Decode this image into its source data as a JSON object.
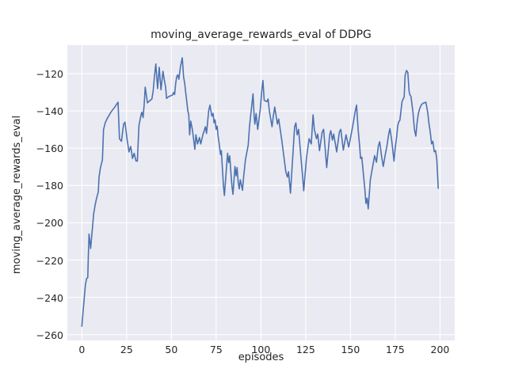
{
  "colors": {
    "figure_bg": "#ffffff",
    "axes_bg": "#eaeaf2",
    "grid": "#ffffff",
    "line": "#4c72b0",
    "text": "#262626"
  },
  "chart_data": {
    "type": "line",
    "title": "moving_average_rewards_eval of DDPG",
    "xlabel": "episodes",
    "ylabel": "moving_average_rewards_eval",
    "legend": null,
    "grid": true,
    "xlim": [
      -8.1,
      208.2
    ],
    "ylim": [
      -263.1,
      -104.7
    ],
    "x_ticks": {
      "values": [
        0,
        25,
        50,
        75,
        100,
        125,
        150,
        175,
        200
      ],
      "labels": [
        "0",
        "25",
        "50",
        "75",
        "100",
        "125",
        "150",
        "175",
        "200"
      ]
    },
    "y_ticks": {
      "values": [
        -260,
        -240,
        -220,
        -200,
        -180,
        -160,
        -140,
        -120
      ],
      "labels": [
        "−260",
        "−240",
        "−220",
        "−200",
        "−180",
        "−160",
        "−140",
        "−120"
      ]
    },
    "series": [
      {
        "name": "moving_average_rewards_eval",
        "points": [
          [
            0,
            -255.5
          ],
          [
            1,
            -244
          ],
          [
            2,
            -233.5
          ],
          [
            2.6,
            -230
          ],
          [
            3.3,
            -229.4
          ],
          [
            3.6,
            -218
          ],
          [
            4,
            -206
          ],
          [
            4.9,
            -213.8
          ],
          [
            5.5,
            -207.4
          ],
          [
            6.1,
            -201
          ],
          [
            6.6,
            -195.3
          ],
          [
            7.5,
            -190
          ],
          [
            8.3,
            -186.5
          ],
          [
            9.2,
            -183.4
          ],
          [
            9.6,
            -175.4
          ],
          [
            10.4,
            -170.5
          ],
          [
            11.5,
            -166.2
          ],
          [
            12.1,
            -150
          ],
          [
            13,
            -146.5
          ],
          [
            14,
            -144.3
          ],
          [
            16.2,
            -140.7
          ],
          [
            18.4,
            -137.9
          ],
          [
            20.2,
            -135.3
          ],
          [
            21,
            -154.9
          ],
          [
            22.1,
            -156.3
          ],
          [
            23.3,
            -147.1
          ],
          [
            24.1,
            -146
          ],
          [
            25.1,
            -154.2
          ],
          [
            26.3,
            -162
          ],
          [
            27.3,
            -159.1
          ],
          [
            28.3,
            -165.5
          ],
          [
            29.2,
            -162.7
          ],
          [
            30.3,
            -166.9
          ],
          [
            31,
            -166.9
          ],
          [
            31.9,
            -147.8
          ],
          [
            32.9,
            -142.8
          ],
          [
            33.5,
            -140.7
          ],
          [
            34.2,
            -143.5
          ],
          [
            34.8,
            -136.5
          ],
          [
            35.4,
            -127.2
          ],
          [
            36.2,
            -132.9
          ],
          [
            36.6,
            -135.7
          ],
          [
            37.3,
            -135
          ],
          [
            39.1,
            -133.6
          ],
          [
            39.8,
            -129.4
          ],
          [
            40.6,
            -120.9
          ],
          [
            41.3,
            -114.8
          ],
          [
            42.3,
            -128
          ],
          [
            43.2,
            -116.6
          ],
          [
            44.2,
            -128.7
          ],
          [
            45.3,
            -118.7
          ],
          [
            46.2,
            -124.4
          ],
          [
            46.8,
            -127.2
          ],
          [
            47.3,
            -133.3
          ],
          [
            48.2,
            -132.5
          ],
          [
            49.4,
            -131.9
          ],
          [
            50.6,
            -131.5
          ],
          [
            51.2,
            -130.1
          ],
          [
            51.8,
            -131.2
          ],
          [
            52.4,
            -125.1
          ],
          [
            53,
            -121.6
          ],
          [
            53.5,
            -120.6
          ],
          [
            54.2,
            -123
          ],
          [
            55.1,
            -116
          ],
          [
            56.1,
            -111.5
          ],
          [
            56.8,
            -121.6
          ],
          [
            57.4,
            -125.1
          ],
          [
            58,
            -130.1
          ],
          [
            58.6,
            -135
          ],
          [
            59.2,
            -140
          ],
          [
            59.7,
            -142.1
          ],
          [
            60.2,
            -152.8
          ],
          [
            60.8,
            -145.5
          ],
          [
            61.7,
            -149.9
          ],
          [
            63.1,
            -160.6
          ],
          [
            63.7,
            -152.8
          ],
          [
            64.6,
            -157.7
          ],
          [
            65.7,
            -154.2
          ],
          [
            66.4,
            -157.7
          ],
          [
            67.6,
            -152.8
          ],
          [
            69,
            -148.5
          ],
          [
            69.6,
            -152.1
          ],
          [
            70.8,
            -140
          ],
          [
            71.5,
            -136.9
          ],
          [
            72.6,
            -142.8
          ],
          [
            73.3,
            -141.3
          ],
          [
            73.8,
            -146.4
          ],
          [
            74.4,
            -144.8
          ],
          [
            75,
            -149.9
          ],
          [
            75.6,
            -148.2
          ],
          [
            76,
            -152.8
          ],
          [
            76.7,
            -157.7
          ],
          [
            77.4,
            -163.4
          ],
          [
            77.9,
            -161.3
          ],
          [
            78.5,
            -171.2
          ],
          [
            79.1,
            -180.4
          ],
          [
            79.6,
            -185.4
          ],
          [
            80.8,
            -169.8
          ],
          [
            81.4,
            -162.7
          ],
          [
            82,
            -167.7
          ],
          [
            82.6,
            -164.1
          ],
          [
            83.2,
            -172.6
          ],
          [
            83.8,
            -180.4
          ],
          [
            84.4,
            -184.7
          ],
          [
            85.5,
            -169.8
          ],
          [
            86.1,
            -174.8
          ],
          [
            86.7,
            -170.4
          ],
          [
            87.3,
            -178.3
          ],
          [
            87.9,
            -181.8
          ],
          [
            88.5,
            -176.9
          ],
          [
            89.7,
            -182.6
          ],
          [
            90.3,
            -175.5
          ],
          [
            91.4,
            -166
          ],
          [
            92.9,
            -158.4
          ],
          [
            93.6,
            -148.5
          ],
          [
            95.6,
            -130.8
          ],
          [
            96.2,
            -142.8
          ],
          [
            96.6,
            -147.1
          ],
          [
            97.3,
            -141.4
          ],
          [
            98.2,
            -149.9
          ],
          [
            99.6,
            -139.3
          ],
          [
            100.6,
            -128
          ],
          [
            101.1,
            -123.7
          ],
          [
            101.8,
            -134.3
          ],
          [
            103.3,
            -135
          ],
          [
            104,
            -133.6
          ],
          [
            104.7,
            -140
          ],
          [
            106.2,
            -148.5
          ],
          [
            106.9,
            -142.8
          ],
          [
            107.7,
            -137.9
          ],
          [
            109.2,
            -147.1
          ],
          [
            109.9,
            -144.3
          ],
          [
            111.4,
            -154.2
          ],
          [
            112.4,
            -161.3
          ],
          [
            113.3,
            -168.3
          ],
          [
            113.9,
            -172.6
          ],
          [
            114.8,
            -175.5
          ],
          [
            115.4,
            -172.6
          ],
          [
            116.5,
            -184.1
          ],
          [
            118.8,
            -148.5
          ],
          [
            119.5,
            -146.4
          ],
          [
            120.2,
            -152.8
          ],
          [
            121,
            -149.9
          ],
          [
            122.4,
            -165.5
          ],
          [
            123.2,
            -174.1
          ],
          [
            123.9,
            -182.8
          ],
          [
            125.4,
            -165.5
          ],
          [
            126.9,
            -154.9
          ],
          [
            128.1,
            -157.7
          ],
          [
            129.1,
            -142.1
          ],
          [
            129.8,
            -149.9
          ],
          [
            131,
            -154.9
          ],
          [
            131.7,
            -152.4
          ],
          [
            132.7,
            -161.3
          ],
          [
            134.2,
            -151.3
          ],
          [
            135,
            -149.9
          ],
          [
            136.7,
            -170.4
          ],
          [
            138.4,
            -152.8
          ],
          [
            139,
            -150.6
          ],
          [
            139.9,
            -155.6
          ],
          [
            140.6,
            -152.4
          ],
          [
            142.3,
            -162
          ],
          [
            143.8,
            -151.3
          ],
          [
            144.6,
            -149.9
          ],
          [
            146,
            -161
          ],
          [
            147.5,
            -152.8
          ],
          [
            149,
            -159.4
          ],
          [
            151.2,
            -148.5
          ],
          [
            152.7,
            -140
          ],
          [
            153.4,
            -136.9
          ],
          [
            154.3,
            -150
          ],
          [
            155.2,
            -159.9
          ],
          [
            155.6,
            -165.5
          ],
          [
            156.3,
            -164.8
          ],
          [
            157.5,
            -176.9
          ],
          [
            158.1,
            -182.6
          ],
          [
            158.6,
            -189.6
          ],
          [
            159.3,
            -186.8
          ],
          [
            159.9,
            -192.5
          ],
          [
            161.1,
            -176.9
          ],
          [
            162.3,
            -170.4
          ],
          [
            163.5,
            -164
          ],
          [
            164.5,
            -167.5
          ],
          [
            165.5,
            -159
          ],
          [
            166.3,
            -156.5
          ],
          [
            167.4,
            -164.8
          ],
          [
            168.3,
            -169.8
          ],
          [
            169.5,
            -163
          ],
          [
            170.3,
            -159.2
          ],
          [
            171.4,
            -152.1
          ],
          [
            172,
            -149.5
          ],
          [
            172.9,
            -154.9
          ],
          [
            174.3,
            -166.9
          ],
          [
            174.9,
            -160.6
          ],
          [
            175.8,
            -153.5
          ],
          [
            176.4,
            -147.8
          ],
          [
            177,
            -145.7
          ],
          [
            177.6,
            -145
          ],
          [
            178.8,
            -135
          ],
          [
            179.4,
            -133.6
          ],
          [
            180,
            -132.5
          ],
          [
            180.5,
            -120.9
          ],
          [
            181.3,
            -118.3
          ],
          [
            182,
            -119.4
          ],
          [
            182.7,
            -129.4
          ],
          [
            183.2,
            -131.5
          ],
          [
            183.8,
            -132.2
          ],
          [
            184.9,
            -140.7
          ],
          [
            185.7,
            -149.9
          ],
          [
            186.5,
            -153.5
          ],
          [
            187.2,
            -146.4
          ],
          [
            187.9,
            -141.4
          ],
          [
            188.7,
            -138.6
          ],
          [
            189.7,
            -136.5
          ],
          [
            190.9,
            -135.7
          ],
          [
            192.1,
            -135.3
          ],
          [
            193.1,
            -140.7
          ],
          [
            193.8,
            -146.4
          ],
          [
            194.6,
            -152
          ],
          [
            195.3,
            -157.7
          ],
          [
            196,
            -156.3
          ],
          [
            196.8,
            -161.9
          ],
          [
            197.5,
            -161.3
          ],
          [
            198.2,
            -166.2
          ],
          [
            199,
            -181.5
          ]
        ]
      }
    ]
  }
}
